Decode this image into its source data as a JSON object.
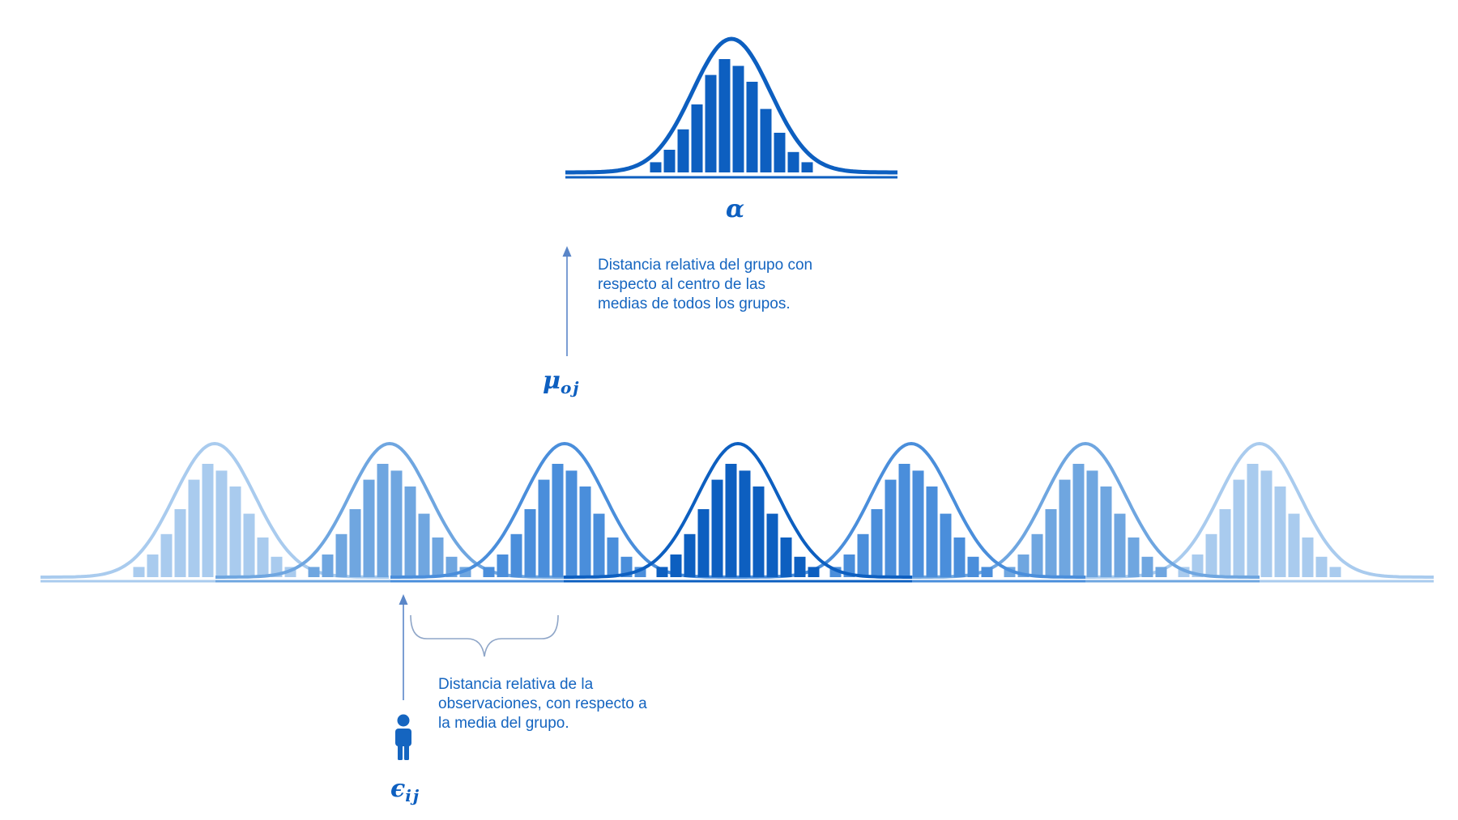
{
  "labels": {
    "alpha": "α",
    "mu": "μ",
    "mu_sub": "oj",
    "epsilon": "ϵ",
    "epsilon_sub": "ij"
  },
  "annotations": {
    "group_distance": "Distancia relativa del grupo con\nrespecto al centro de las\nmedias de todos los grupos.",
    "observation_distance": "Distancia relativa de la\nobservaciones, con respecto a\nla media del grupo."
  },
  "colors": {
    "top": "#0d5fc0",
    "groups": [
      "#a9cbee",
      "#6fa6e0",
      "#4a8edb",
      "#0d5fc0",
      "#4a8edb",
      "#6fa6e0",
      "#a9cbee"
    ],
    "text": "#1565c0",
    "arrow": "#5a86c8",
    "brace": "#8fa6c8",
    "person": "#1565c0"
  },
  "histogram_profile": [
    0.09,
    0.2,
    0.38,
    0.6,
    0.86,
    1.0,
    0.94,
    0.8,
    0.56,
    0.35,
    0.18,
    0.09
  ],
  "group_count": 7,
  "icons": {
    "person": "person-icon"
  }
}
